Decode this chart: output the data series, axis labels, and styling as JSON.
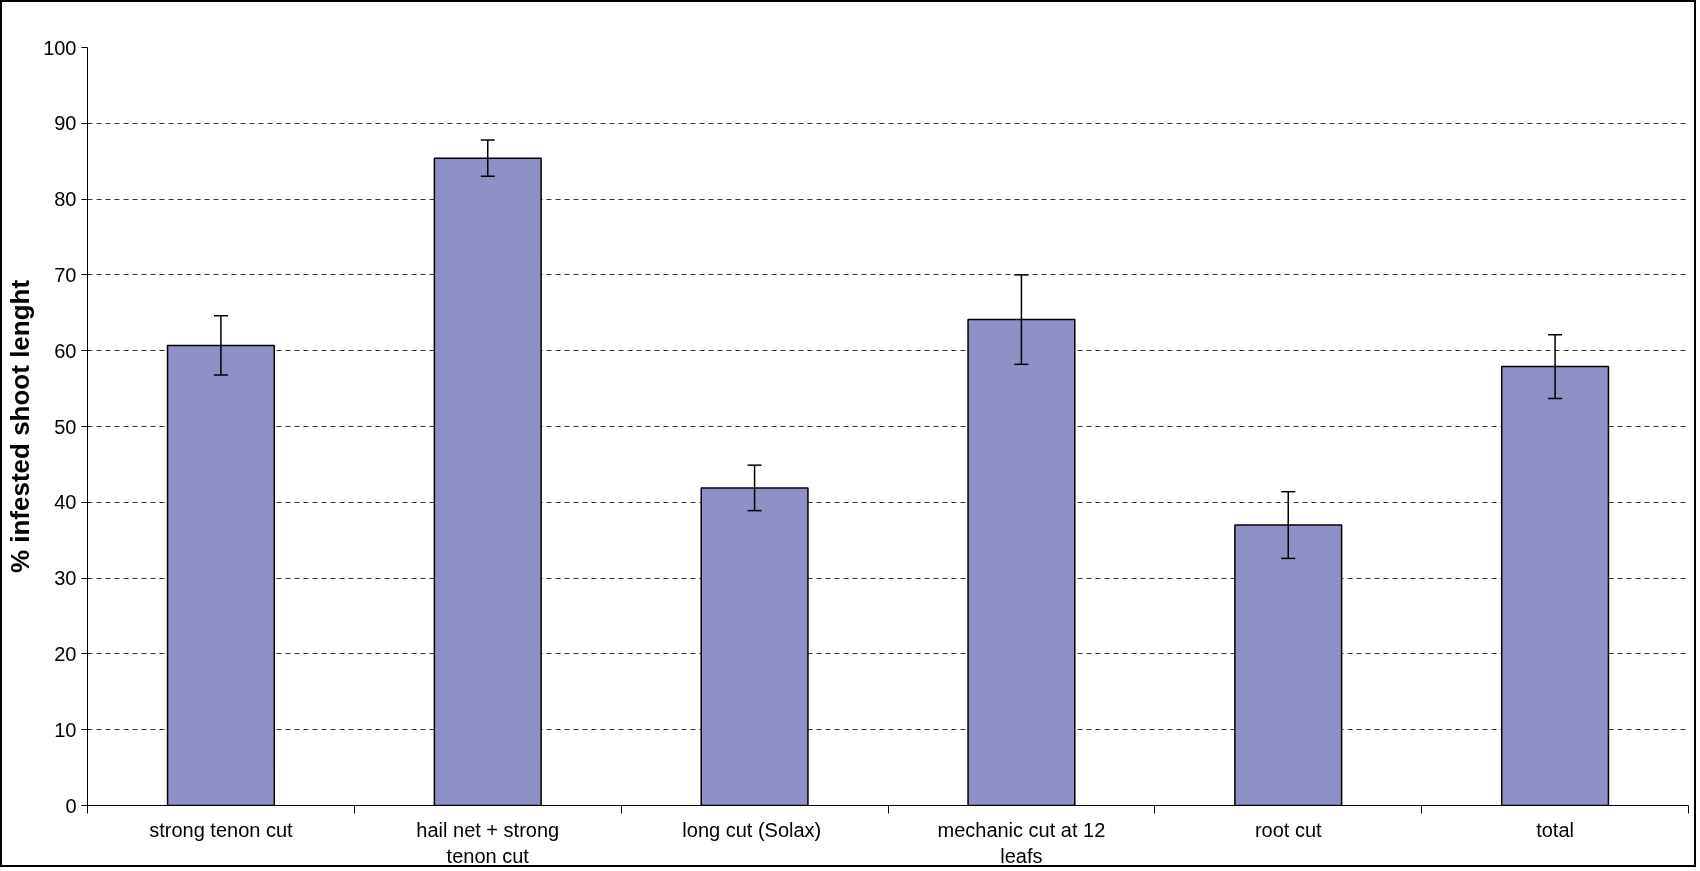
{
  "chart_data": {
    "type": "bar",
    "ylabel": "% infested shoot lenght",
    "categories": [
      "strong tenon cut",
      "hail net + strong tenon cut",
      "long cut  (Solax)",
      "mechanic cut at 12 leafs",
      "root cut",
      "total"
    ],
    "values": [
      60.7,
      85.4,
      41.9,
      64.1,
      37.0,
      57.9
    ],
    "errors": [
      3.9,
      2.4,
      3.0,
      5.9,
      4.4,
      4.2
    ],
    "color": "#8f90c6",
    "ylim": [
      0,
      100
    ],
    "yticks": [
      0,
      10,
      20,
      30,
      40,
      50,
      60,
      70,
      80,
      90,
      100
    ],
    "grid": "y"
  }
}
